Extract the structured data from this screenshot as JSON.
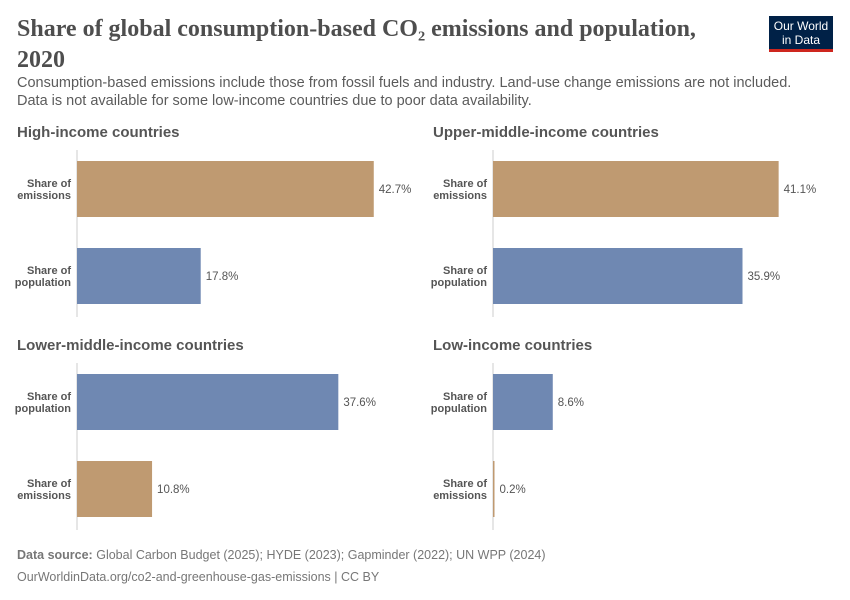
{
  "title": "Share of global consumption-based CO₂ emissions and population, 2020",
  "subtitle": "Consumption-based emissions include those from fossil fuels and industry. Land-use change emissions are not included. Data is not available for some low-income countries due to poor data availability.",
  "logo": "Our World in Data",
  "footer": {
    "source_label": "Data source:",
    "source": "Global Carbon Budget (2025); HYDE (2023); Gapminder (2022); UN WPP (2024)",
    "url": "OurWorldinData.org/co2-and-greenhouse-gas-emissions | CC BY"
  },
  "colors": {
    "emissions": "#bf9a71",
    "population": "#6f88b2"
  },
  "chart_data": [
    {
      "type": "bar",
      "title": "High-income countries",
      "categories": [
        "Share of emissions",
        "Share of population"
      ],
      "values": [
        42.7,
        17.8
      ],
      "unit": "%",
      "xlim": [
        0,
        45
      ]
    },
    {
      "type": "bar",
      "title": "Upper-middle-income countries",
      "categories": [
        "Share of emissions",
        "Share of population"
      ],
      "values": [
        41.1,
        35.9
      ],
      "unit": "%",
      "xlim": [
        0,
        45
      ]
    },
    {
      "type": "bar",
      "title": "Lower-middle-income countries",
      "categories": [
        "Share of population",
        "Share of emissions"
      ],
      "values": [
        37.6,
        10.8
      ],
      "unit": "%",
      "xlim": [
        0,
        45
      ]
    },
    {
      "type": "bar",
      "title": "Low-income countries",
      "categories": [
        "Share of population",
        "Share of emissions"
      ],
      "values": [
        8.6,
        0.2
      ],
      "unit": "%",
      "xlim": [
        0,
        45
      ]
    }
  ]
}
